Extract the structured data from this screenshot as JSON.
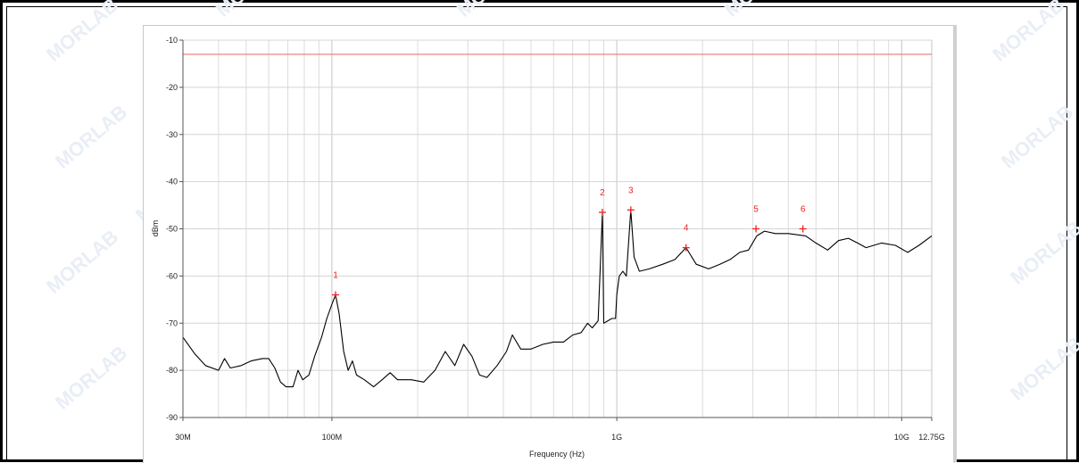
{
  "chart_data": {
    "type": "line",
    "xlabel": "Frequency (Hz)",
    "ylabel": "dBm",
    "x_scale": "log",
    "xlim": [
      30000000,
      12750000000
    ],
    "ylim": [
      -90,
      -10
    ],
    "grid": true,
    "x_ticks": [
      {
        "label": "30M",
        "value": 30000000
      },
      {
        "label": "100M",
        "value": 100000000
      },
      {
        "label": "1G",
        "value": 1000000000
      },
      {
        "label": "10G",
        "value": 10000000000
      },
      {
        "label": "12.75G",
        "value": 12750000000
      }
    ],
    "y_ticks": [
      {
        "label": "-10",
        "value": -10
      },
      {
        "label": "-20",
        "value": -20
      },
      {
        "label": "-30",
        "value": -30
      },
      {
        "label": "-40",
        "value": -40
      },
      {
        "label": "-50",
        "value": -50
      },
      {
        "label": "-60",
        "value": -60
      },
      {
        "label": "-70",
        "value": -70
      },
      {
        "label": "-80",
        "value": -80
      },
      {
        "label": "-90",
        "value": -90
      }
    ],
    "limit_line": {
      "value": -13,
      "color": "#f08080"
    },
    "series": [
      {
        "color": "#000000",
        "points": [
          [
            30000000,
            -73
          ],
          [
            33000000,
            -76.5
          ],
          [
            36000000,
            -79
          ],
          [
            40000000,
            -80
          ],
          [
            42000000,
            -77.5
          ],
          [
            44000000,
            -79.5
          ],
          [
            48000000,
            -79
          ],
          [
            52000000,
            -78
          ],
          [
            57000000,
            -77.5
          ],
          [
            60000000,
            -77.5
          ],
          [
            63000000,
            -79.5
          ],
          [
            66000000,
            -82.5
          ],
          [
            69000000,
            -83.5
          ],
          [
            73000000,
            -83.5
          ],
          [
            76000000,
            -80
          ],
          [
            79000000,
            -82
          ],
          [
            83000000,
            -81
          ],
          [
            87000000,
            -77
          ],
          [
            92000000,
            -73
          ],
          [
            96000000,
            -69
          ],
          [
            100000000,
            -66
          ],
          [
            103000000,
            -64
          ],
          [
            106000000,
            -68
          ],
          [
            110000000,
            -76
          ],
          [
            114000000,
            -80
          ],
          [
            118000000,
            -78
          ],
          [
            122000000,
            -81
          ],
          [
            130000000,
            -82
          ],
          [
            140000000,
            -83.5
          ],
          [
            150000000,
            -82
          ],
          [
            160000000,
            -80.5
          ],
          [
            170000000,
            -82
          ],
          [
            190000000,
            -82
          ],
          [
            210000000,
            -82.5
          ],
          [
            230000000,
            -80
          ],
          [
            250000000,
            -76
          ],
          [
            270000000,
            -79
          ],
          [
            290000000,
            -74.5
          ],
          [
            310000000,
            -77
          ],
          [
            330000000,
            -81
          ],
          [
            350000000,
            -81.5
          ],
          [
            380000000,
            -79
          ],
          [
            410000000,
            -76
          ],
          [
            430000000,
            -72.5
          ],
          [
            460000000,
            -75.5
          ],
          [
            500000000,
            -75.5
          ],
          [
            550000000,
            -74.5
          ],
          [
            600000000,
            -74
          ],
          [
            650000000,
            -74
          ],
          [
            700000000,
            -72.5
          ],
          [
            750000000,
            -72
          ],
          [
            790000000,
            -70
          ],
          [
            820000000,
            -71
          ],
          [
            860000000,
            -69.5
          ],
          [
            890000000,
            -46.5
          ],
          [
            900000000,
            -70
          ],
          [
            930000000,
            -69.5
          ],
          [
            960000000,
            -69
          ],
          [
            990000000,
            -69
          ],
          [
            1000000000,
            -64
          ],
          [
            1020000000,
            -60
          ],
          [
            1050000000,
            -59
          ],
          [
            1080000000,
            -60
          ],
          [
            1120000000,
            -46
          ],
          [
            1150000000,
            -56
          ],
          [
            1200000000,
            -59
          ],
          [
            1300000000,
            -58.5
          ],
          [
            1450000000,
            -57.5
          ],
          [
            1600000000,
            -56.5
          ],
          [
            1750000000,
            -54
          ],
          [
            1900000000,
            -57.5
          ],
          [
            2100000000,
            -58.5
          ],
          [
            2300000000,
            -57.5
          ],
          [
            2500000000,
            -56.5
          ],
          [
            2700000000,
            -55
          ],
          [
            2900000000,
            -54.5
          ],
          [
            3100000000,
            -51.5
          ],
          [
            3300000000,
            -50.5
          ],
          [
            3600000000,
            -51
          ],
          [
            4000000000,
            -51
          ],
          [
            4600000000,
            -51.5
          ],
          [
            5000000000,
            -53
          ],
          [
            5500000000,
            -54.5
          ],
          [
            6000000000,
            -52.5
          ],
          [
            6500000000,
            -52
          ],
          [
            7000000000,
            -53
          ],
          [
            7500000000,
            -54
          ],
          [
            8500000000,
            -53
          ],
          [
            9500000000,
            -53.5
          ],
          [
            10500000000,
            -55
          ],
          [
            11500000000,
            -53.5
          ],
          [
            12750000000,
            -51.5
          ]
        ]
      }
    ],
    "markers": [
      {
        "label": "1",
        "x": 103000000,
        "y": -64
      },
      {
        "label": "2",
        "x": 890000000,
        "y": -46.5
      },
      {
        "label": "3",
        "x": 1120000000,
        "y": -46
      },
      {
        "label": "4",
        "x": 1750000000,
        "y": -54
      },
      {
        "label": "5",
        "x": 3080000000,
        "y": -50
      },
      {
        "label": "6",
        "x": 4500000000,
        "y": -50
      }
    ],
    "marker_color": "#ee2222"
  },
  "watermark": {
    "text": "MORLAB"
  }
}
